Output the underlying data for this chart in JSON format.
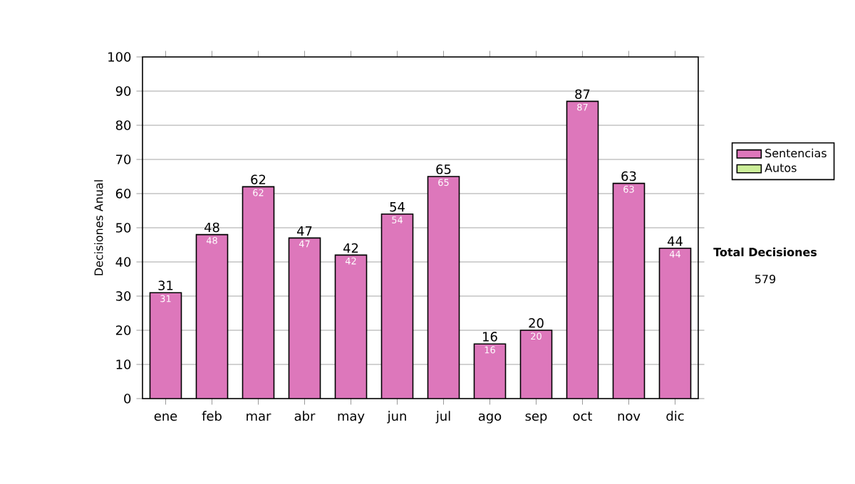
{
  "chart_data": {
    "type": "bar",
    "ylabel": "Decisiones Anual",
    "categories": [
      "ene",
      "feb",
      "mar",
      "abr",
      "may",
      "jun",
      "jul",
      "ago",
      "sep",
      "oct",
      "nov",
      "dic"
    ],
    "series": [
      {
        "name": "Sentencias",
        "color": "#dd77bb",
        "values": [
          31,
          48,
          62,
          47,
          42,
          54,
          65,
          16,
          20,
          87,
          63,
          44
        ]
      },
      {
        "name": "Autos",
        "color": "#ccee99",
        "values": [
          null,
          null,
          null,
          null,
          null,
          null,
          null,
          null,
          null,
          null,
          null,
          null
        ]
      }
    ],
    "stacked": true,
    "data_labels": true,
    "totals": [
      "31",
      "48",
      "62",
      "47",
      "42",
      "54",
      "65",
      "16",
      "20",
      "87",
      "63",
      "44"
    ],
    "ylim": [
      0,
      100
    ],
    "yticks": [
      0,
      10,
      20,
      30,
      40,
      50,
      60,
      70,
      80,
      90,
      100
    ],
    "grid": "y",
    "legend": "right",
    "annotations": [
      "Total Decisiones",
      "579"
    ]
  }
}
